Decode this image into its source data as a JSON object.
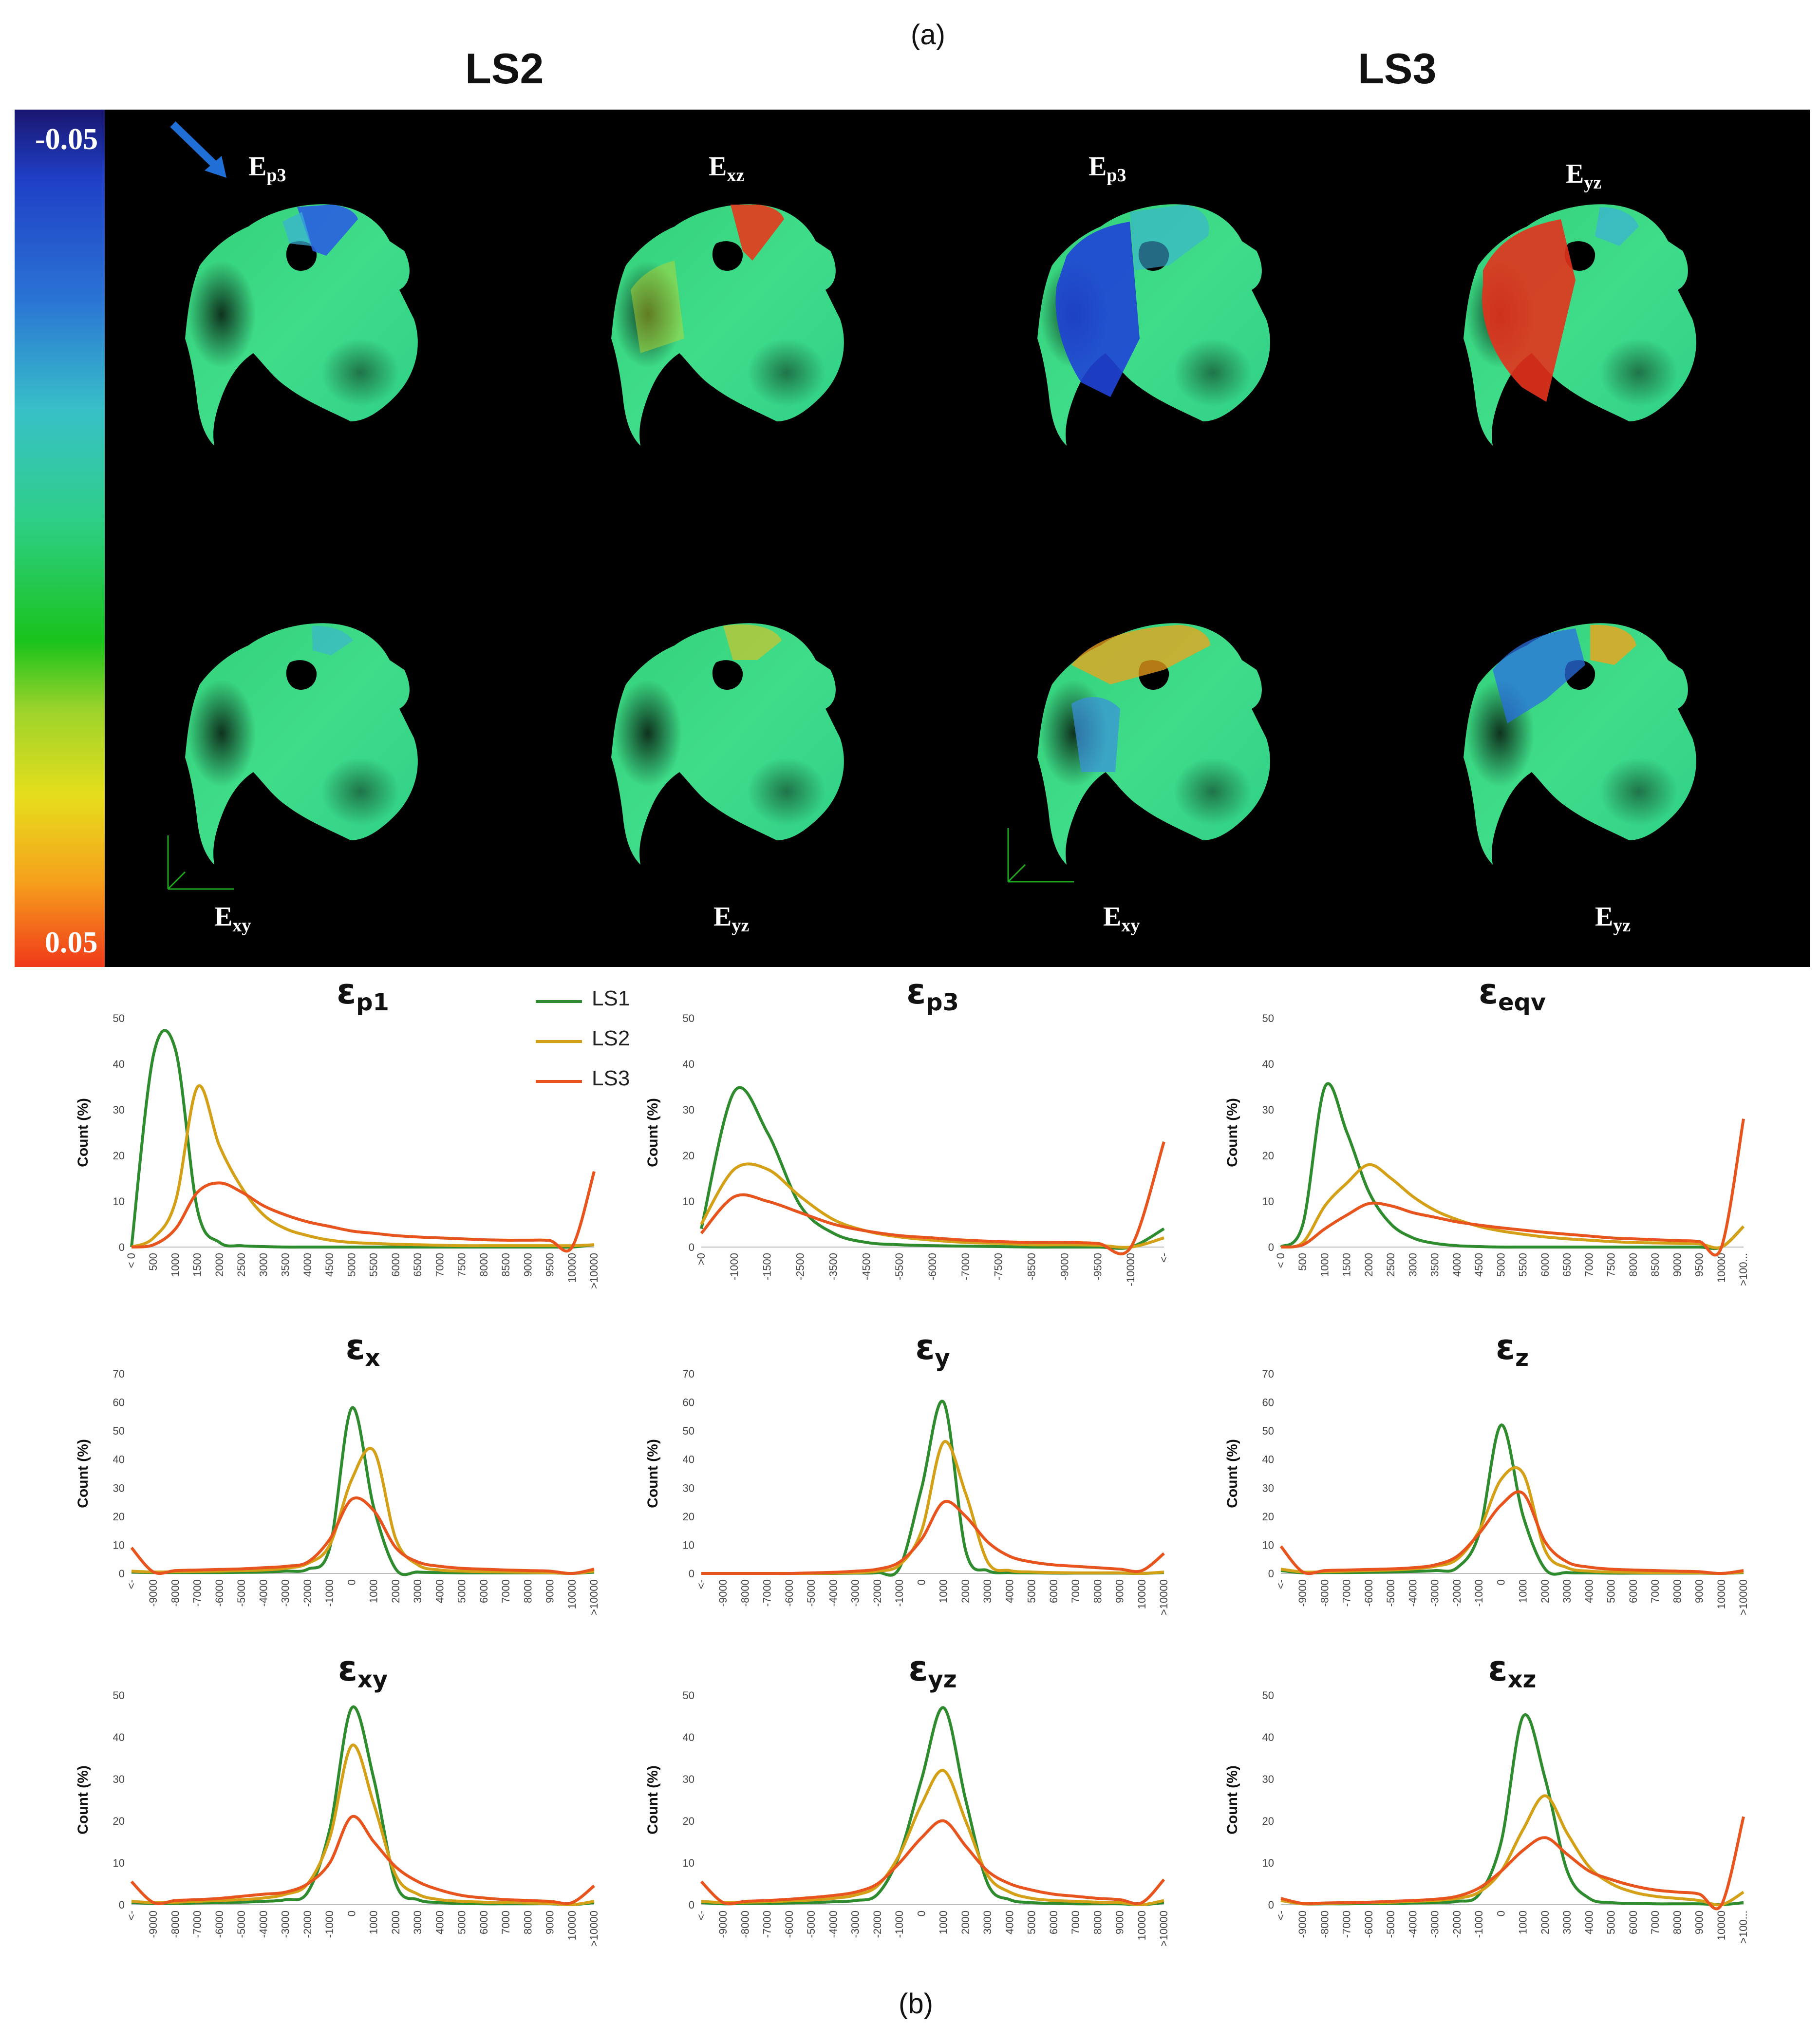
{
  "figure": {
    "label_a": "(a)",
    "label_b": "(b)",
    "heading_left": "LS2",
    "heading_right": "LS3",
    "colorbar": {
      "top_label": "-0.05",
      "bottom_label": "0.05"
    },
    "maps": [
      {
        "main": "E",
        "sub": "p3",
        "position": "top",
        "column": 1
      },
      {
        "main": "E",
        "sub": "xz",
        "position": "top",
        "column": 2
      },
      {
        "main": "E",
        "sub": "p3",
        "position": "top",
        "column": 3
      },
      {
        "main": "E",
        "sub": "yz",
        "position": "top",
        "column": 4
      },
      {
        "main": "E",
        "sub": "xy",
        "position": "bottom",
        "column": 1
      },
      {
        "main": "E",
        "sub": "yz",
        "position": "bottom",
        "column": 2
      },
      {
        "main": "E",
        "sub": "xy",
        "position": "bottom",
        "column": 3
      },
      {
        "main": "E",
        "sub": "yz",
        "position": "bottom",
        "column": 4
      }
    ]
  },
  "legend": [
    {
      "name": "LS1",
      "color": "#2e8b2e"
    },
    {
      "name": "LS2",
      "color": "#d4a017"
    },
    {
      "name": "LS3",
      "color": "#e8541e"
    }
  ],
  "chart_data": [
    {
      "type": "line",
      "title_main": "ε",
      "title_sub": "p1",
      "ylabel": "Count (%)",
      "ylim": [
        0,
        50
      ],
      "yticks": [
        0,
        10,
        20,
        30,
        40,
        50
      ],
      "categories": [
        "< 0",
        "500",
        "1000",
        "1500",
        "2000",
        "2500",
        "3000",
        "3500",
        "4000",
        "4500",
        "5000",
        "5500",
        "6000",
        "6500",
        "7000",
        "7500",
        "8000",
        "8500",
        "9000",
        "9500",
        "10000",
        ">10000"
      ],
      "series": [
        {
          "name": "LS1",
          "values": [
            0,
            42,
            43,
            8,
            1,
            0.3,
            0.1,
            0,
            0,
            0,
            0,
            0,
            0,
            0,
            0,
            0,
            0,
            0,
            0,
            0,
            0,
            0.5
          ]
        },
        {
          "name": "LS2",
          "values": [
            0,
            2,
            10,
            35,
            22,
            13,
            7,
            4,
            2.5,
            1.5,
            1,
            0.8,
            0.6,
            0.5,
            0.4,
            0.3,
            0.3,
            0.3,
            0.3,
            0.3,
            0.3,
            0.5
          ]
        },
        {
          "name": "LS3",
          "values": [
            0,
            0.5,
            4,
            12,
            14,
            12,
            9,
            7,
            5.5,
            4.5,
            3.5,
            3,
            2.5,
            2.2,
            2,
            1.8,
            1.6,
            1.5,
            1.5,
            1.4,
            0,
            16.5
          ]
        }
      ]
    },
    {
      "type": "line",
      "title_main": "ε",
      "title_sub": "p3",
      "ylabel": "Count (%)",
      "ylim": [
        0,
        50
      ],
      "yticks": [
        0,
        10,
        20,
        30,
        40,
        50
      ],
      "categories": [
        ">0",
        "-1000",
        "-1500",
        "-2500",
        "-3500",
        "-4500",
        "-5500",
        "-6000",
        "-7000",
        "-7500",
        "-8500",
        "-9000",
        "-9500",
        "-10000",
        "<-"
      ],
      "series": [
        {
          "name": "LS1",
          "values": [
            4,
            34,
            25,
            9,
            3,
            1,
            0.5,
            0.3,
            0.2,
            0.1,
            0,
            0,
            0,
            0,
            4
          ]
        },
        {
          "name": "LS2",
          "values": [
            5,
            17,
            17,
            11,
            6,
            3.5,
            2.2,
            1.5,
            1,
            0.8,
            0.5,
            0.5,
            0.4,
            0,
            2
          ]
        },
        {
          "name": "LS3",
          "values": [
            3,
            11,
            10,
            7.5,
            5,
            3.5,
            2.5,
            2,
            1.5,
            1.2,
            1,
            1,
            0.8,
            0,
            23
          ]
        }
      ]
    },
    {
      "type": "line",
      "title_main": "ε",
      "title_sub": "eqv",
      "ylabel": "Count (%)",
      "ylim": [
        0,
        50
      ],
      "yticks": [
        0,
        10,
        20,
        30,
        40,
        50
      ],
      "categories": [
        "< 0",
        "500",
        "1000",
        "1500",
        "2000",
        "2500",
        "3000",
        "3500",
        "4000",
        "4500",
        "5000",
        "5500",
        "6000",
        "6500",
        "7000",
        "7500",
        "8000",
        "8500",
        "9000",
        "9500",
        "10000",
        ">100..."
      ],
      "series": [
        {
          "name": "LS1",
          "values": [
            0,
            5,
            35,
            25,
            12,
            5,
            2,
            0.8,
            0.3,
            0.1,
            0,
            0,
            0,
            0,
            0,
            0,
            0,
            0,
            0,
            0,
            0,
            4.5
          ]
        },
        {
          "name": "LS2",
          "values": [
            0,
            1,
            9,
            14,
            18,
            15,
            11,
            8,
            6,
            4.5,
            3.5,
            2.8,
            2.2,
            1.8,
            1.5,
            1.2,
            1,
            0.9,
            0.8,
            0.7,
            0,
            4.5
          ]
        },
        {
          "name": "LS3",
          "values": [
            0,
            0.5,
            4,
            7,
            9.5,
            9,
            7.5,
            6.5,
            5.5,
            4.8,
            4.2,
            3.7,
            3.2,
            2.8,
            2.4,
            2,
            1.8,
            1.6,
            1.4,
            1.2,
            0,
            28
          ]
        }
      ]
    },
    {
      "type": "line",
      "title_main": "ε",
      "title_sub": "x",
      "ylabel": "Count (%)",
      "ylim": [
        0,
        70
      ],
      "yticks": [
        0,
        10,
        20,
        30,
        40,
        50,
        60,
        70
      ],
      "categories": [
        "<-",
        "-9000",
        "-8000",
        "-7000",
        "-6000",
        "-5000",
        "-4000",
        "-3000",
        "-2000",
        "-1000",
        "0",
        "1000",
        "2000",
        "3000",
        "4000",
        "5000",
        "6000",
        "7000",
        "8000",
        "9000",
        "10000",
        ">10000"
      ],
      "series": [
        {
          "name": "LS1",
          "values": [
            0.5,
            0.3,
            0.3,
            0.3,
            0.3,
            0.4,
            0.5,
            0.8,
            1.5,
            9,
            58,
            23,
            1.5,
            0.5,
            0.3,
            0.2,
            0.2,
            0.2,
            0.2,
            0.2,
            0,
            0.5
          ]
        },
        {
          "name": "LS2",
          "values": [
            0.8,
            0.5,
            0.6,
            0.7,
            0.8,
            1,
            1.2,
            1.8,
            3.5,
            10,
            33,
            43,
            12,
            3,
            1.2,
            0.8,
            0.6,
            0.5,
            0.4,
            0.3,
            0,
            0.8
          ]
        },
        {
          "name": "LS3",
          "values": [
            9,
            0.5,
            1,
            1.2,
            1.4,
            1.6,
            2,
            2.5,
            4,
            12,
            26,
            22,
            9,
            4,
            2.5,
            1.8,
            1.5,
            1.2,
            1,
            0.8,
            0,
            1.5
          ]
        }
      ]
    },
    {
      "type": "line",
      "title_main": "ε",
      "title_sub": "y",
      "ylabel": "Count (%)",
      "ylim": [
        0,
        70
      ],
      "yticks": [
        0,
        10,
        20,
        30,
        40,
        50,
        60,
        70
      ],
      "categories": [
        "<-",
        "-9000",
        "-8000",
        "-7000",
        "-6000",
        "-5000",
        "-4000",
        "-3000",
        "-2000",
        "-1000",
        "0",
        "1000",
        "2000",
        "3000",
        "4000",
        "5000",
        "6000",
        "7000",
        "8000",
        "9000",
        "10000",
        ">10000"
      ],
      "series": [
        {
          "name": "LS1",
          "values": [
            0,
            0,
            0,
            0,
            0,
            0,
            0,
            0.1,
            0.3,
            2,
            30,
            60,
            8,
            1,
            0.3,
            0.2,
            0.1,
            0.1,
            0.1,
            0.1,
            0,
            0.3
          ]
        },
        {
          "name": "LS2",
          "values": [
            0,
            0,
            0,
            0,
            0,
            0,
            0.1,
            0.3,
            0.8,
            3,
            15,
            46,
            28,
            4,
            1,
            0.5,
            0.3,
            0.2,
            0.2,
            0.2,
            0,
            0.5
          ]
        },
        {
          "name": "LS3",
          "values": [
            0,
            0,
            0,
            0,
            0,
            0.2,
            0.4,
            0.8,
            1.5,
            4,
            12,
            25,
            20,
            11,
            6,
            4,
            3,
            2.5,
            2,
            1.5,
            1,
            7
          ]
        }
      ]
    },
    {
      "type": "line",
      "title_main": "ε",
      "title_sub": "z",
      "ylabel": "Count (%)",
      "ylim": [
        0,
        70
      ],
      "yticks": [
        0,
        10,
        20,
        30,
        40,
        50,
        60,
        70
      ],
      "categories": [
        "<-",
        "-9000",
        "-8000",
        "-7000",
        "-6000",
        "-5000",
        "-4000",
        "-3000",
        "-2000",
        "-1000",
        "0",
        "1000",
        "2000",
        "3000",
        "4000",
        "5000",
        "6000",
        "7000",
        "8000",
        "9000",
        "10000",
        ">10000"
      ],
      "series": [
        {
          "name": "LS1",
          "values": [
            1,
            0.2,
            0.3,
            0.3,
            0.4,
            0.5,
            0.7,
            1,
            2,
            14,
            52,
            20,
            1.5,
            0.3,
            0.2,
            0.1,
            0.1,
            0.1,
            0.1,
            0.1,
            0,
            0.3
          ]
        },
        {
          "name": "LS2",
          "values": [
            1.5,
            0.5,
            0.6,
            0.8,
            1,
            1.2,
            1.6,
            2.5,
            5,
            15,
            33,
            35,
            8,
            2,
            0.8,
            0.5,
            0.4,
            0.3,
            0.3,
            0.2,
            0,
            0.5
          ]
        },
        {
          "name": "LS3",
          "values": [
            9.5,
            0.5,
            1,
            1.2,
            1.4,
            1.6,
            2,
            3,
            6,
            14,
            24,
            28,
            11,
            4,
            2.2,
            1.5,
            1.2,
            1,
            0.8,
            0.6,
            0,
            1
          ]
        }
      ]
    },
    {
      "type": "line",
      "title_main": "ε",
      "title_sub": "xy",
      "ylabel": "Count (%)",
      "ylim": [
        0,
        50
      ],
      "yticks": [
        0,
        10,
        20,
        30,
        40,
        50
      ],
      "categories": [
        "<-",
        "-9000",
        "-8000",
        "-7000",
        "-6000",
        "-5000",
        "-4000",
        "-3000",
        "-2000",
        "-1000",
        "0",
        "1000",
        "2000",
        "3000",
        "4000",
        "5000",
        "6000",
        "7000",
        "8000",
        "9000",
        "10000",
        ">10000"
      ],
      "series": [
        {
          "name": "LS1",
          "values": [
            0.5,
            0.3,
            0.3,
            0.4,
            0.5,
            0.6,
            0.8,
            1.2,
            3,
            18,
            47,
            30,
            5,
            1.2,
            0.5,
            0.3,
            0.2,
            0.2,
            0.2,
            0.2,
            0,
            0.5
          ]
        },
        {
          "name": "LS2",
          "values": [
            0.8,
            0.5,
            0.6,
            0.8,
            1,
            1.2,
            1.6,
            2.5,
            5,
            16,
            38,
            24,
            7,
            2.5,
            1.2,
            0.8,
            0.6,
            0.5,
            0.4,
            0.3,
            0,
            0.8
          ]
        },
        {
          "name": "LS3",
          "values": [
            5.5,
            0.5,
            1,
            1.2,
            1.5,
            2,
            2.5,
            3,
            5,
            10,
            21,
            15,
            9,
            5.5,
            3.5,
            2.2,
            1.6,
            1.2,
            1,
            0.8,
            0.5,
            4.5
          ]
        }
      ]
    },
    {
      "type": "line",
      "title_main": "ε",
      "title_sub": "yz",
      "ylabel": "Count (%)",
      "ylim": [
        0,
        50
      ],
      "yticks": [
        0,
        10,
        20,
        30,
        40,
        50
      ],
      "categories": [
        "<-",
        "-9000",
        "-8000",
        "-7000",
        "-6000",
        "-5000",
        "-4000",
        "-3000",
        "-2000",
        "-1000",
        "0",
        "1000",
        "2000",
        "3000",
        "4000",
        "5000",
        "6000",
        "7000",
        "8000",
        "9000",
        "10000",
        ">10000"
      ],
      "series": [
        {
          "name": "LS1",
          "values": [
            0.5,
            0.2,
            0.3,
            0.3,
            0.4,
            0.5,
            0.7,
            1,
            2.5,
            12,
            30,
            47,
            25,
            5,
            1.2,
            0.5,
            0.3,
            0.2,
            0.2,
            0.2,
            0,
            0.5
          ]
        },
        {
          "name": "LS2",
          "values": [
            0.8,
            0.5,
            0.6,
            0.7,
            0.9,
            1.1,
            1.5,
            2.3,
            4.5,
            12,
            24,
            32,
            20,
            7,
            3,
            1.5,
            1,
            0.8,
            0.6,
            0.5,
            0,
            1
          ]
        },
        {
          "name": "LS3",
          "values": [
            5.5,
            0.5,
            0.8,
            1,
            1.3,
            1.7,
            2.2,
            3,
            5,
            10,
            16,
            20,
            14,
            8,
            5,
            3.5,
            2.5,
            2,
            1.5,
            1.2,
            0.5,
            6
          ]
        }
      ]
    },
    {
      "type": "line",
      "title_main": "ε",
      "title_sub": "xz",
      "ylabel": "Count (%)",
      "ylim": [
        0,
        50
      ],
      "yticks": [
        0,
        10,
        20,
        30,
        40,
        50
      ],
      "categories": [
        "<-",
        "-9000",
        "-8000",
        "-7000",
        "-6000",
        "-5000",
        "-4000",
        "-3000",
        "-2000",
        "-1000",
        "0",
        "1000",
        "2000",
        "3000",
        "4000",
        "5000",
        "6000",
        "7000",
        "8000",
        "9000",
        "10000",
        ">100..."
      ],
      "series": [
        {
          "name": "LS1",
          "values": [
            1,
            0.2,
            0.2,
            0.2,
            0.3,
            0.3,
            0.4,
            0.5,
            0.8,
            2.5,
            15,
            45,
            30,
            8,
            1.5,
            0.5,
            0.3,
            0.2,
            0.2,
            0.2,
            0,
            0.5
          ]
        },
        {
          "name": "LS2",
          "values": [
            1,
            0.2,
            0.3,
            0.4,
            0.5,
            0.6,
            0.8,
            1,
            1.5,
            3,
            8,
            18,
            26,
            17,
            9,
            5,
            3,
            2,
            1.5,
            1,
            0,
            3
          ]
        },
        {
          "name": "LS3",
          "values": [
            1.5,
            0.3,
            0.4,
            0.5,
            0.6,
            0.8,
            1,
            1.3,
            2,
            4,
            8,
            13,
            16,
            12,
            8,
            6,
            4.5,
            3.5,
            3,
            2.5,
            0,
            21
          ]
        }
      ]
    }
  ]
}
